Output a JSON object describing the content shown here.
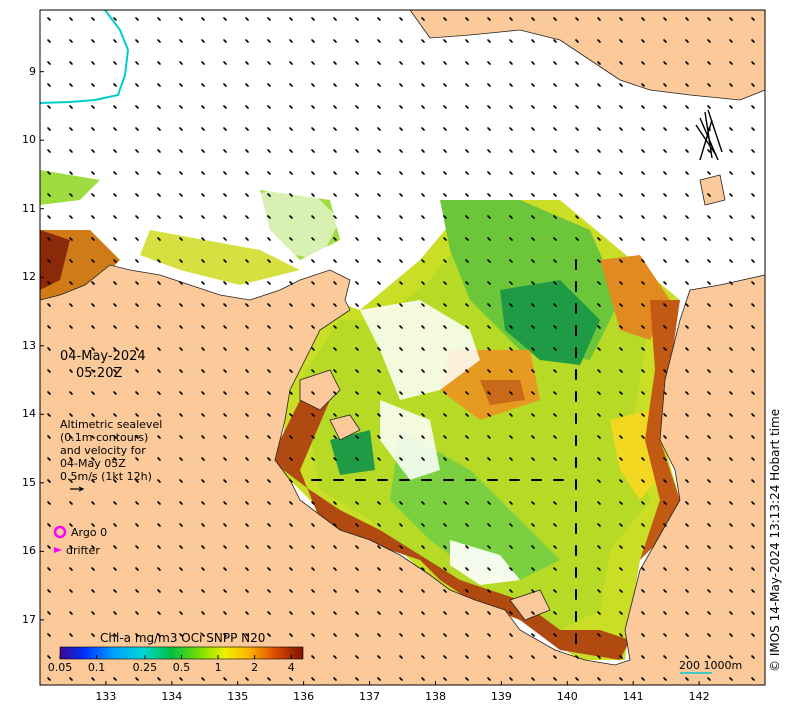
{
  "datetime": {
    "date": "04-May-2024",
    "time": "05:20Z"
  },
  "legend": {
    "title_lines": [
      "Altimetric sealevel",
      "(0.1m contours)",
      "and velocity for",
      "04-May 05Z",
      "0.5m/s (1kt 12h)"
    ],
    "argo_label": "Argo 0",
    "drifter_label": "drifter",
    "argo_color": "#ff00ff",
    "drifter_color": "#ff00ff"
  },
  "colorbar": {
    "title": "Chl-a mg/m3 OCi SNPP N20",
    "tick_labels": [
      "0.05",
      "0.1",
      "0.25",
      "0.5",
      "1",
      "2",
      "4"
    ],
    "tick_values": [
      0.05,
      0.1,
      0.25,
      0.5,
      1,
      2,
      4
    ],
    "range": [
      0.05,
      5
    ]
  },
  "scale_bar": {
    "label": "200  1000m"
  },
  "stamp": "© IMOS 14-May-2024 13:13:24 Hobart time",
  "axes": {
    "lat_labels": [
      "9",
      "10",
      "11",
      "12",
      "13",
      "14",
      "15",
      "16",
      "17"
    ],
    "lat_values": [
      -9,
      -10,
      -11,
      -12,
      -13,
      -14,
      -15,
      -16,
      -17
    ],
    "lon_labels": [
      "133",
      "134",
      "135",
      "136",
      "137",
      "138",
      "139",
      "140",
      "141",
      "142"
    ],
    "lon_values": [
      133,
      134,
      135,
      136,
      137,
      138,
      139,
      140,
      141,
      142
    ],
    "lon_range": [
      132.0,
      143.0
    ],
    "lat_range": [
      -8.1,
      -17.95
    ]
  },
  "colors": {
    "land": "#fcc99a",
    "ocean": "#ffffff",
    "contour": "#00cccc"
  }
}
